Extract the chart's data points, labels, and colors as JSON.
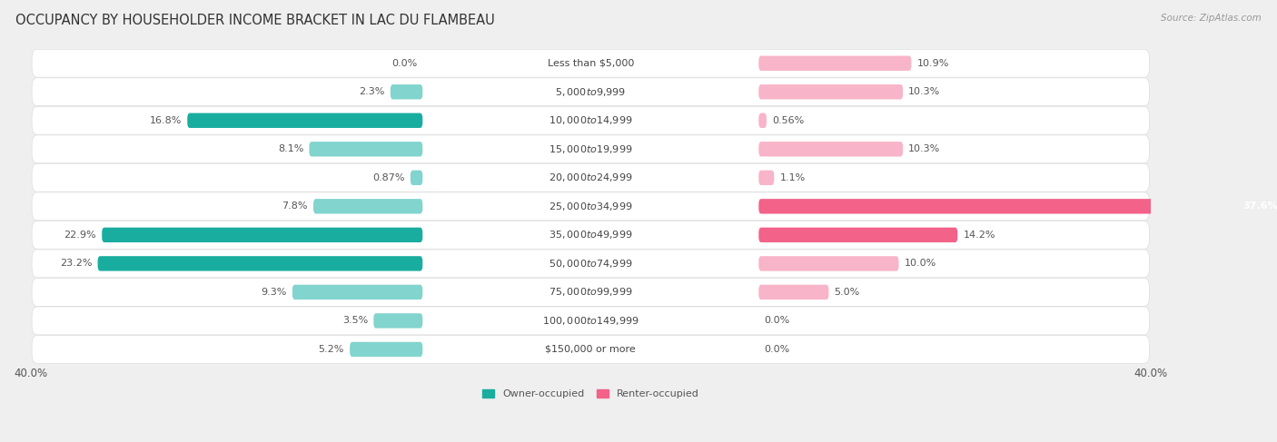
{
  "title": "OCCUPANCY BY HOUSEHOLDER INCOME BRACKET IN LAC DU FLAMBEAU",
  "source": "Source: ZipAtlas.com",
  "categories": [
    "Less than $5,000",
    "$5,000 to $9,999",
    "$10,000 to $14,999",
    "$15,000 to $19,999",
    "$20,000 to $24,999",
    "$25,000 to $34,999",
    "$35,000 to $49,999",
    "$50,000 to $74,999",
    "$75,000 to $99,999",
    "$100,000 to $149,999",
    "$150,000 or more"
  ],
  "owner_values": [
    0.0,
    2.3,
    16.8,
    8.1,
    0.87,
    7.8,
    22.9,
    23.2,
    9.3,
    3.5,
    5.2
  ],
  "renter_values": [
    10.9,
    10.3,
    0.56,
    10.3,
    1.1,
    37.6,
    14.2,
    10.0,
    5.0,
    0.0,
    0.0
  ],
  "owner_color_dark": "#19ada0",
  "owner_color_light": "#82d4ce",
  "renter_color_dark": "#f26289",
  "renter_color_light": "#f8b4c8",
  "bg_color": "#efefef",
  "row_color_white": "#ffffff",
  "max_val": 40.0,
  "bar_height": 0.52,
  "title_fontsize": 10.5,
  "label_fontsize": 8.0,
  "value_fontsize": 8.0,
  "axis_fontsize": 8.5,
  "source_fontsize": 7.5
}
